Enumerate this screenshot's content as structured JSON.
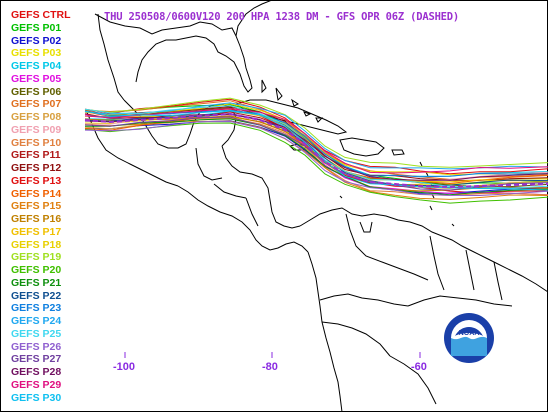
{
  "title": "THU 250508/0600V120  200 HPA 1238 DM - GFS OPR 06Z (DASHED)",
  "legend": [
    {
      "label": "GEFS CTRL",
      "color": "#e01010"
    },
    {
      "label": "GEFS P01",
      "color": "#00c000"
    },
    {
      "label": "GEFS P02",
      "color": "#1010d0"
    },
    {
      "label": "GEFS P03",
      "color": "#e8e000"
    },
    {
      "label": "GEFS P04",
      "color": "#00c8e8"
    },
    {
      "label": "GEFS P05",
      "color": "#e010e0"
    },
    {
      "label": "GEFS P06",
      "color": "#606000"
    },
    {
      "label": "GEFS P07",
      "color": "#e07020"
    },
    {
      "label": "GEFS P08",
      "color": "#d8a040"
    },
    {
      "label": "GEFS P09",
      "color": "#f0a0b0"
    },
    {
      "label": "GEFS P10",
      "color": "#e08040"
    },
    {
      "label": "GEFS P11",
      "color": "#b01818"
    },
    {
      "label": "GEFS P12",
      "color": "#901010"
    },
    {
      "label": "GEFS P13",
      "color": "#e01010"
    },
    {
      "label": "GEFS P14",
      "color": "#f06000"
    },
    {
      "label": "GEFS P15",
      "color": "#e08010"
    },
    {
      "label": "GEFS P16",
      "color": "#c08000"
    },
    {
      "label": "GEFS P17",
      "color": "#f0c000"
    },
    {
      "label": "GEFS P18",
      "color": "#e8d000"
    },
    {
      "label": "GEFS P19",
      "color": "#a0e020"
    },
    {
      "label": "GEFS P20",
      "color": "#40c000"
    },
    {
      "label": "GEFS P21",
      "color": "#109010"
    },
    {
      "label": "GEFS P22",
      "color": "#105090"
    },
    {
      "label": "GEFS P23",
      "color": "#1080e0"
    },
    {
      "label": "GEFS P24",
      "color": "#20a8f0"
    },
    {
      "label": "GEFS P25",
      "color": "#40d8f0"
    },
    {
      "label": "GEFS P26",
      "color": "#9060d0"
    },
    {
      "label": "GEFS P27",
      "color": "#7040a0"
    },
    {
      "label": "GEFS P28",
      "color": "#701060"
    },
    {
      "label": "GEFS P29",
      "color": "#e01080"
    },
    {
      "label": "GEFS P30",
      "color": "#10c0f0"
    }
  ],
  "longitude_labels": [
    "-100",
    "-80",
    "-60"
  ],
  "logo_text": "NOAA",
  "colors": {
    "title": "#9b30d0",
    "axis_labels": "#8a2be2",
    "land_outline": "#000000",
    "noaa_blue": "#1a3fa8",
    "noaa_light": "#3fa2e0"
  }
}
